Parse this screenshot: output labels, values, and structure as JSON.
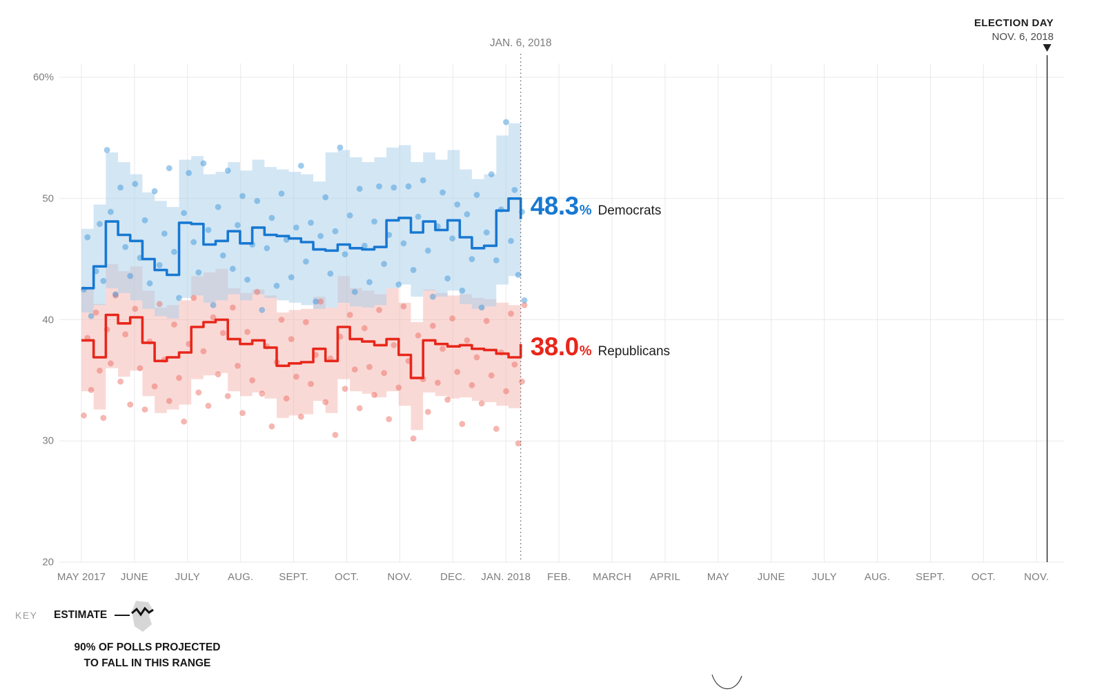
{
  "annotations": {
    "today_label": "JAN. 6, 2018",
    "election_day_title": "ELECTION DAY",
    "election_day_date": "NOV. 6, 2018"
  },
  "value_labels": {
    "dem": {
      "value": "48.3",
      "pct": "%",
      "name": "Democrats"
    },
    "rep": {
      "value": "38.0",
      "pct": "%",
      "name": "Republicans"
    }
  },
  "key": {
    "label": "KEY",
    "estimate": "ESTIMATE",
    "range_line1": "90% OF POLLS PROJECTED",
    "range_line2": "TO FALL IN THIS RANGE"
  },
  "colors": {
    "dem_line": "#1778d2",
    "dem_band": "#a8cdea",
    "dem_dot": "#3f97d9",
    "dem_text": "#1778d2",
    "rep_line": "#e8261a",
    "rep_band": "#f3b3ae",
    "rep_dot": "#ee6e63",
    "rep_text": "#e8261a",
    "grid": "#e9e9e9",
    "axis_text": "#7d7d7d",
    "dark_text": "#1d1d1d",
    "today_line": "#555555",
    "election_line": "#222222"
  },
  "chart_data": {
    "type": "line",
    "description": "Generic congressional ballot polling averages with 90% projection bands and individual polls, May 2017 through Election Day Nov. 6, 2018",
    "ylim": [
      20,
      60
    ],
    "grid": true,
    "x_unit": "weeks since May 2017",
    "today_week": 36,
    "election_month_index": 18.2,
    "y_ticks": [
      {
        "label": "60%",
        "v": 60
      },
      {
        "label": "50",
        "v": 50
      },
      {
        "label": "40",
        "v": 40
      },
      {
        "label": "30",
        "v": 30
      },
      {
        "label": "20",
        "v": 20
      }
    ],
    "x_ticks": [
      {
        "label": "MAY 2017",
        "m": 0
      },
      {
        "label": "JUNE",
        "m": 1
      },
      {
        "label": "JULY",
        "m": 2
      },
      {
        "label": "AUG.",
        "m": 3
      },
      {
        "label": "SEPT.",
        "m": 4
      },
      {
        "label": "OCT.",
        "m": 5
      },
      {
        "label": "NOV.",
        "m": 6
      },
      {
        "label": "DEC.",
        "m": 7
      },
      {
        "label": "JAN. 2018",
        "m": 8
      },
      {
        "label": "FEB.",
        "m": 9
      },
      {
        "label": "MARCH",
        "m": 10
      },
      {
        "label": "APRIL",
        "m": 11
      },
      {
        "label": "MAY",
        "m": 12
      },
      {
        "label": "JUNE",
        "m": 13
      },
      {
        "label": "JULY",
        "m": 14
      },
      {
        "label": "AUG.",
        "m": 15
      },
      {
        "label": "SEPT.",
        "m": 16
      },
      {
        "label": "OCT.",
        "m": 17
      },
      {
        "label": "NOV.",
        "m": 18
      }
    ],
    "series": [
      {
        "key": "dem",
        "name": "Democrats",
        "final_value": 48.3,
        "values": [
          42.6,
          44.4,
          48.1,
          47.0,
          46.5,
          45.0,
          44.1,
          43.7,
          48.0,
          47.9,
          46.2,
          46.5,
          47.3,
          46.3,
          47.6,
          47.0,
          46.9,
          46.7,
          46.4,
          45.8,
          45.7,
          46.2,
          45.9,
          45.8,
          46.0,
          48.2,
          48.4,
          47.2,
          48.1,
          47.4,
          48.2,
          46.8,
          45.9,
          46.1,
          49.0,
          50.0,
          48.3
        ],
        "upper": [
          47.5,
          49.5,
          53.8,
          53.0,
          52.0,
          50.5,
          49.8,
          49.3,
          53.2,
          53.5,
          52.0,
          52.2,
          53.0,
          52.3,
          53.2,
          52.6,
          52.4,
          52.2,
          52.0,
          51.4,
          53.8,
          54.0,
          53.4,
          53.0,
          53.4,
          54.2,
          54.4,
          53.0,
          53.8,
          53.2,
          54.0,
          52.4,
          51.6,
          52.0,
          55.2,
          56.2,
          53.8
        ],
        "lower": [
          40.6,
          41.2,
          42.6,
          42.2,
          41.6,
          40.9,
          40.3,
          40.1,
          41.8,
          42.0,
          41.4,
          41.6,
          42.1,
          41.6,
          42.1,
          41.8,
          41.6,
          41.4,
          41.2,
          40.9,
          41.0,
          41.4,
          41.1,
          41.0,
          41.2,
          42.6,
          42.9,
          41.9,
          42.4,
          41.9,
          42.4,
          41.3,
          40.9,
          41.1,
          42.9,
          43.6,
          42.4
        ]
      },
      {
        "key": "rep",
        "name": "Republicans",
        "final_value": 38.0,
        "values": [
          38.3,
          36.9,
          40.4,
          39.7,
          40.2,
          38.1,
          36.6,
          36.9,
          37.3,
          39.4,
          39.8,
          40.0,
          38.4,
          38.0,
          38.3,
          37.7,
          36.2,
          36.4,
          36.5,
          37.6,
          36.6,
          39.4,
          38.4,
          38.2,
          37.9,
          38.4,
          37.1,
          35.2,
          38.3,
          38.0,
          37.8,
          37.9,
          37.6,
          37.5,
          37.2,
          36.9,
          38.0
        ],
        "upper": [
          42.6,
          41.3,
          44.6,
          44.0,
          44.4,
          42.4,
          41.0,
          41.2,
          41.6,
          43.6,
          43.9,
          44.2,
          42.6,
          42.2,
          42.5,
          42.0,
          40.6,
          40.8,
          40.9,
          41.9,
          41.0,
          43.6,
          42.6,
          42.4,
          42.1,
          42.6,
          41.4,
          39.8,
          42.5,
          42.2,
          42.0,
          42.1,
          41.8,
          41.7,
          41.4,
          41.2,
          42.1
        ],
        "lower": [
          34.1,
          32.6,
          36.0,
          35.3,
          35.8,
          33.7,
          32.3,
          32.6,
          33.0,
          35.1,
          35.4,
          35.6,
          34.1,
          33.7,
          34.0,
          33.5,
          31.9,
          32.1,
          32.2,
          33.3,
          32.3,
          35.1,
          34.1,
          33.9,
          33.6,
          34.1,
          32.9,
          30.9,
          34.0,
          33.7,
          33.5,
          33.6,
          33.3,
          33.2,
          32.9,
          32.7,
          33.7
        ]
      }
    ],
    "scatter": {
      "dem": [
        [
          0.2,
          42.5
        ],
        [
          0.5,
          46.8
        ],
        [
          0.8,
          40.3
        ],
        [
          1.2,
          44.0
        ],
        [
          1.5,
          47.9
        ],
        [
          1.8,
          43.2
        ],
        [
          2.1,
          54.0
        ],
        [
          2.4,
          48.9
        ],
        [
          2.8,
          42.1
        ],
        [
          3.2,
          50.9
        ],
        [
          3.6,
          46.0
        ],
        [
          4.0,
          43.6
        ],
        [
          4.4,
          51.2
        ],
        [
          4.8,
          45.1
        ],
        [
          5.2,
          48.2
        ],
        [
          5.6,
          43.0
        ],
        [
          6.0,
          50.6
        ],
        [
          6.4,
          44.5
        ],
        [
          6.8,
          47.1
        ],
        [
          7.2,
          52.5
        ],
        [
          7.6,
          45.6
        ],
        [
          8.0,
          41.8
        ],
        [
          8.4,
          48.8
        ],
        [
          8.8,
          52.1
        ],
        [
          9.2,
          46.4
        ],
        [
          9.6,
          43.9
        ],
        [
          10.0,
          52.9
        ],
        [
          10.4,
          47.4
        ],
        [
          10.8,
          41.2
        ],
        [
          11.2,
          49.3
        ],
        [
          11.6,
          45.3
        ],
        [
          12.0,
          52.3
        ],
        [
          12.4,
          44.2
        ],
        [
          12.8,
          47.8
        ],
        [
          13.2,
          50.2
        ],
        [
          13.6,
          43.3
        ],
        [
          14.0,
          46.2
        ],
        [
          14.4,
          49.8
        ],
        [
          14.8,
          40.8
        ],
        [
          15.2,
          45.9
        ],
        [
          15.6,
          48.4
        ],
        [
          16.0,
          42.8
        ],
        [
          16.4,
          50.4
        ],
        [
          16.8,
          46.6
        ],
        [
          17.2,
          43.5
        ],
        [
          17.6,
          47.6
        ],
        [
          18.0,
          52.7
        ],
        [
          18.4,
          44.8
        ],
        [
          18.8,
          48.0
        ],
        [
          19.2,
          41.5
        ],
        [
          19.6,
          46.9
        ],
        [
          20.0,
          50.1
        ],
        [
          20.4,
          43.8
        ],
        [
          20.8,
          47.3
        ],
        [
          21.2,
          54.2
        ],
        [
          21.6,
          45.4
        ],
        [
          22.0,
          48.6
        ],
        [
          22.4,
          42.3
        ],
        [
          22.8,
          50.8
        ],
        [
          23.2,
          46.1
        ],
        [
          23.6,
          43.1
        ],
        [
          24.0,
          48.1
        ],
        [
          24.4,
          51.0
        ],
        [
          24.8,
          44.6
        ],
        [
          25.2,
          47.0
        ],
        [
          25.6,
          50.9
        ],
        [
          26.0,
          42.9
        ],
        [
          26.4,
          46.3
        ],
        [
          26.8,
          51.0
        ],
        [
          27.2,
          44.1
        ],
        [
          27.6,
          48.5
        ],
        [
          28.0,
          51.5
        ],
        [
          28.4,
          45.7
        ],
        [
          28.8,
          41.9
        ],
        [
          29.2,
          47.7
        ],
        [
          29.6,
          50.5
        ],
        [
          30.0,
          43.4
        ],
        [
          30.4,
          46.7
        ],
        [
          30.8,
          49.5
        ],
        [
          31.2,
          42.4
        ],
        [
          31.6,
          48.7
        ],
        [
          32.0,
          45.0
        ],
        [
          32.4,
          50.3
        ],
        [
          32.8,
          41.0
        ],
        [
          33.2,
          47.2
        ],
        [
          33.6,
          52.0
        ],
        [
          34.0,
          44.9
        ],
        [
          34.4,
          49.1
        ],
        [
          34.8,
          56.3
        ],
        [
          35.2,
          46.5
        ],
        [
          35.5,
          50.7
        ],
        [
          35.8,
          43.7
        ],
        [
          36.1,
          48.9
        ],
        [
          36.3,
          41.6
        ]
      ],
      "rep": [
        [
          0.2,
          32.1
        ],
        [
          0.5,
          38.5
        ],
        [
          0.8,
          34.2
        ],
        [
          1.2,
          40.6
        ],
        [
          1.5,
          35.8
        ],
        [
          1.8,
          31.9
        ],
        [
          2.1,
          39.2
        ],
        [
          2.4,
          36.4
        ],
        [
          2.8,
          42.0
        ],
        [
          3.2,
          34.9
        ],
        [
          3.6,
          38.8
        ],
        [
          4.0,
          33.0
        ],
        [
          4.4,
          40.9
        ],
        [
          4.8,
          36.0
        ],
        [
          5.2,
          32.6
        ],
        [
          5.6,
          38.2
        ],
        [
          6.0,
          34.5
        ],
        [
          6.4,
          41.3
        ],
        [
          6.8,
          36.7
        ],
        [
          7.2,
          33.3
        ],
        [
          7.6,
          39.6
        ],
        [
          8.0,
          35.2
        ],
        [
          8.4,
          31.6
        ],
        [
          8.8,
          38.0
        ],
        [
          9.2,
          41.8
        ],
        [
          9.6,
          34.0
        ],
        [
          10.0,
          37.4
        ],
        [
          10.4,
          32.9
        ],
        [
          10.8,
          40.2
        ],
        [
          11.2,
          35.5
        ],
        [
          11.6,
          38.9
        ],
        [
          12.0,
          33.7
        ],
        [
          12.4,
          41.0
        ],
        [
          12.8,
          36.2
        ],
        [
          13.2,
          32.3
        ],
        [
          13.6,
          39.0
        ],
        [
          14.0,
          35.0
        ],
        [
          14.4,
          42.3
        ],
        [
          14.8,
          33.9
        ],
        [
          15.2,
          37.8
        ],
        [
          15.6,
          31.2
        ],
        [
          16.0,
          36.5
        ],
        [
          16.4,
          40.0
        ],
        [
          16.8,
          33.5
        ],
        [
          17.2,
          38.4
        ],
        [
          17.6,
          35.3
        ],
        [
          18.0,
          32.0
        ],
        [
          18.4,
          39.8
        ],
        [
          18.8,
          34.7
        ],
        [
          19.2,
          37.1
        ],
        [
          19.6,
          41.5
        ],
        [
          20.0,
          33.2
        ],
        [
          20.4,
          36.8
        ],
        [
          20.8,
          30.5
        ],
        [
          21.2,
          38.6
        ],
        [
          21.6,
          34.3
        ],
        [
          22.0,
          40.4
        ],
        [
          22.4,
          35.9
        ],
        [
          22.8,
          32.7
        ],
        [
          23.2,
          39.3
        ],
        [
          23.6,
          36.1
        ],
        [
          24.0,
          33.8
        ],
        [
          24.4,
          40.8
        ],
        [
          24.8,
          35.6
        ],
        [
          25.2,
          31.8
        ],
        [
          25.6,
          37.9
        ],
        [
          26.0,
          34.4
        ],
        [
          26.4,
          41.1
        ],
        [
          26.8,
          36.6
        ],
        [
          27.2,
          30.2
        ],
        [
          27.6,
          38.7
        ],
        [
          28.0,
          35.1
        ],
        [
          28.4,
          32.4
        ],
        [
          28.8,
          39.5
        ],
        [
          29.2,
          34.8
        ],
        [
          29.6,
          37.6
        ],
        [
          30.0,
          33.4
        ],
        [
          30.4,
          40.1
        ],
        [
          30.8,
          35.7
        ],
        [
          31.2,
          31.4
        ],
        [
          31.6,
          38.3
        ],
        [
          32.0,
          34.6
        ],
        [
          32.4,
          36.9
        ],
        [
          32.8,
          33.1
        ],
        [
          33.2,
          39.9
        ],
        [
          33.6,
          35.4
        ],
        [
          34.0,
          31.0
        ],
        [
          34.4,
          37.3
        ],
        [
          34.8,
          34.1
        ],
        [
          35.2,
          40.5
        ],
        [
          35.5,
          36.3
        ],
        [
          35.8,
          29.8
        ],
        [
          36.1,
          34.9
        ],
        [
          36.3,
          41.2
        ]
      ]
    }
  }
}
